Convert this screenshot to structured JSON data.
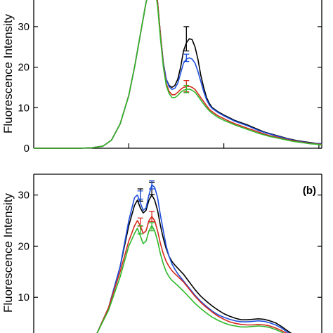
{
  "chart_data": [
    {
      "type": "line",
      "panel": "a",
      "panel_label": "",
      "ylabel": "Fluorescence Intensity",
      "ylim": [
        0,
        40
      ],
      "yticks": [
        0,
        10,
        20,
        30
      ],
      "xlim": [
        0,
        100
      ],
      "xticks": [
        0,
        33,
        66,
        99
      ],
      "grid": false,
      "x": [
        0,
        8,
        16,
        20,
        24,
        27,
        30,
        33,
        35,
        37,
        39,
        41,
        42,
        43,
        44,
        45,
        46,
        47,
        48,
        49,
        50,
        51,
        52,
        53,
        54,
        55,
        56,
        57,
        58,
        59,
        60,
        61,
        62,
        63,
        64,
        66,
        68,
        70,
        72,
        74,
        76,
        78,
        80,
        82,
        84,
        86,
        88,
        90,
        92,
        94,
        96,
        98,
        100
      ],
      "series": [
        {
          "color": "#000000",
          "values": [
            0,
            0,
            0,
            0.1,
            0.5,
            2,
            6,
            13,
            20,
            28,
            36,
            41,
            41,
            36,
            28,
            21,
            17,
            15.5,
            15,
            15.5,
            17,
            20,
            24,
            26,
            27,
            26.8,
            25,
            22,
            18,
            15,
            12.5,
            11,
            10,
            9.5,
            9,
            8.2,
            7.5,
            6.8,
            6.3,
            5.8,
            5.2,
            4.6,
            4.0,
            3.6,
            3.2,
            2.8,
            2.4,
            2.1,
            1.8,
            1.6,
            1.4,
            1.2,
            1.1
          ],
          "error_x": 53,
          "error_y": 27,
          "error": 3.0
        },
        {
          "color": "#1f4fdc",
          "values": [
            0,
            0,
            0,
            0.1,
            0.5,
            2,
            6,
            13,
            20,
            28,
            36,
            41,
            41,
            36,
            28,
            21,
            17,
            15.2,
            14.5,
            14.8,
            16,
            18.5,
            21,
            22,
            22.3,
            22,
            21,
            19,
            16.5,
            14,
            12,
            10.6,
            9.8,
            9.3,
            8.8,
            8.0,
            7.3,
            6.6,
            6.1,
            5.6,
            5.0,
            4.4,
            3.9,
            3.5,
            3.1,
            2.7,
            2.3,
            2.0,
            1.7,
            1.5,
            1.3,
            1.2,
            1.0
          ],
          "error_x": 53,
          "error_y": 22.3,
          "error": 0.9
        },
        {
          "color": "#d42a1e",
          "values": [
            0,
            0,
            0,
            0.1,
            0.5,
            2,
            6,
            13,
            20,
            28,
            36,
            41,
            41,
            36,
            28,
            20.5,
            16,
            14,
            13.2,
            13.2,
            13.8,
            14.5,
            15,
            15.2,
            15.3,
            15,
            14.5,
            13.5,
            12.5,
            11.5,
            10.5,
            9.6,
            9.0,
            8.5,
            8.0,
            7.3,
            6.6,
            6.0,
            5.5,
            5.0,
            4.5,
            4.0,
            3.5,
            3.1,
            2.8,
            2.5,
            2.1,
            1.9,
            1.6,
            1.4,
            1.2,
            1.1,
            0.9
          ],
          "error_x": 53,
          "error_y": 15.3,
          "error": 1.4
        },
        {
          "color": "#2fb82a",
          "values": [
            0,
            0,
            0,
            0.1,
            0.5,
            2,
            6,
            13,
            20,
            28,
            36,
            40,
            40,
            35,
            27,
            20,
            15.5,
            13.5,
            12.5,
            12.5,
            13,
            13.8,
            14.3,
            14.5,
            14.6,
            14.3,
            13.8,
            12.9,
            11.9,
            10.9,
            10,
            9.2,
            8.6,
            8.1,
            7.6,
            6.9,
            6.3,
            5.7,
            5.2,
            4.7,
            4.2,
            3.7,
            3.3,
            2.9,
            2.6,
            2.3,
            2.0,
            1.7,
            1.5,
            1.3,
            1.1,
            1.0,
            0.8
          ],
          "error_x": 53,
          "error_y": 14.6,
          "error": 0.9
        }
      ]
    },
    {
      "type": "line",
      "panel": "b",
      "panel_label": "(b)",
      "ylabel": "Fluorescence Intensity",
      "ylim": [
        0,
        38
      ],
      "yticks": [
        10,
        20,
        30
      ],
      "xlim": [
        0,
        100
      ],
      "grid": false,
      "x": [
        0,
        8,
        14,
        18,
        22,
        26,
        30,
        33,
        35,
        36,
        37,
        38,
        39,
        40,
        41,
        42,
        43,
        44,
        45,
        46,
        47,
        48,
        49,
        50,
        52,
        54,
        56,
        58,
        60,
        62,
        64,
        66,
        68,
        70,
        72,
        74,
        76,
        78,
        80,
        82,
        84,
        86,
        88,
        90,
        92,
        94,
        96,
        98,
        100
      ],
      "series": [
        {
          "color": "#000000",
          "values": [
            0,
            0,
            0.2,
            1,
            3,
            8,
            16,
            24,
            28,
            29,
            27.5,
            26.5,
            27,
            29,
            30,
            29,
            27,
            24,
            21.5,
            19.5,
            18,
            17,
            16.3,
            15.7,
            14.5,
            13,
            11.5,
            10.2,
            9.2,
            8.3,
            7.5,
            6.8,
            6.3,
            5.9,
            5.6,
            5.6,
            5.7,
            5.8,
            5.7,
            5.4,
            5.0,
            4.3,
            3.5,
            2.7,
            2.0,
            1.4,
            1.0,
            0.6,
            0.4
          ],
          "errors": [
            {
              "x": 37,
              "y": 30,
              "e": 1.2
            },
            {
              "x": 41,
              "y": 31.3,
              "e": 1.2
            }
          ]
        },
        {
          "color": "#1f4fdc",
          "values": [
            0,
            0,
            0.2,
            1,
            3,
            8,
            16,
            25,
            29.5,
            30,
            28.5,
            27,
            27.5,
            30,
            32,
            31.5,
            29.5,
            26,
            23,
            20,
            18,
            16.5,
            15.5,
            14.6,
            13.2,
            11.8,
            10.4,
            9.2,
            8.2,
            7.3,
            6.6,
            6.1,
            5.7,
            5.4,
            5.2,
            5.2,
            5.3,
            5.4,
            5.3,
            5.0,
            4.6,
            4.0,
            3.2,
            2.5,
            1.8,
            1.2,
            0.8,
            0.5,
            0.3
          ],
          "errors": [
            {
              "x": 37,
              "y": 30,
              "e": 0.8
            },
            {
              "x": 41,
              "y": 32,
              "e": 0.8
            }
          ]
        },
        {
          "color": "#d42a1e",
          "values": [
            0,
            0,
            0.2,
            1,
            3,
            8,
            15,
            21,
            24,
            25,
            24,
            22.5,
            23,
            25,
            25.8,
            25,
            23,
            20.5,
            18.5,
            17,
            16,
            15.2,
            14.6,
            14.1,
            13.0,
            11.6,
            10.2,
            9.0,
            8.0,
            7.1,
            6.3,
            5.7,
            5.2,
            4.9,
            4.7,
            4.6,
            4.6,
            4.7,
            4.6,
            4.4,
            4.0,
            3.5,
            2.9,
            2.3,
            1.7,
            1.2,
            0.8,
            0.5,
            0.3
          ],
          "errors": [
            {
              "x": 37,
              "y": 24.7,
              "e": 0.8
            },
            {
              "x": 41,
              "y": 25.8,
              "e": 1.0
            }
          ]
        },
        {
          "color": "#2fb82a",
          "values": [
            0,
            0,
            0.2,
            1,
            3,
            7.5,
            14,
            20,
            22.5,
            23.5,
            22,
            20.5,
            21,
            23,
            24,
            23,
            21,
            18.5,
            16.5,
            15,
            14,
            13.3,
            12.8,
            12.3,
            11.2,
            10.0,
            8.8,
            7.8,
            6.9,
            6.1,
            5.5,
            5.0,
            4.6,
            4.4,
            4.2,
            4.2,
            4.3,
            4.4,
            4.3,
            4.1,
            3.7,
            3.2,
            2.6,
            2.0,
            1.5,
            1.0,
            0.7,
            0.4,
            0.2
          ],
          "errors": [
            {
              "x": 37,
              "y": 23.2,
              "e": 0.8
            },
            {
              "x": 41,
              "y": 23.8,
              "e": 0.8
            }
          ]
        }
      ]
    }
  ]
}
